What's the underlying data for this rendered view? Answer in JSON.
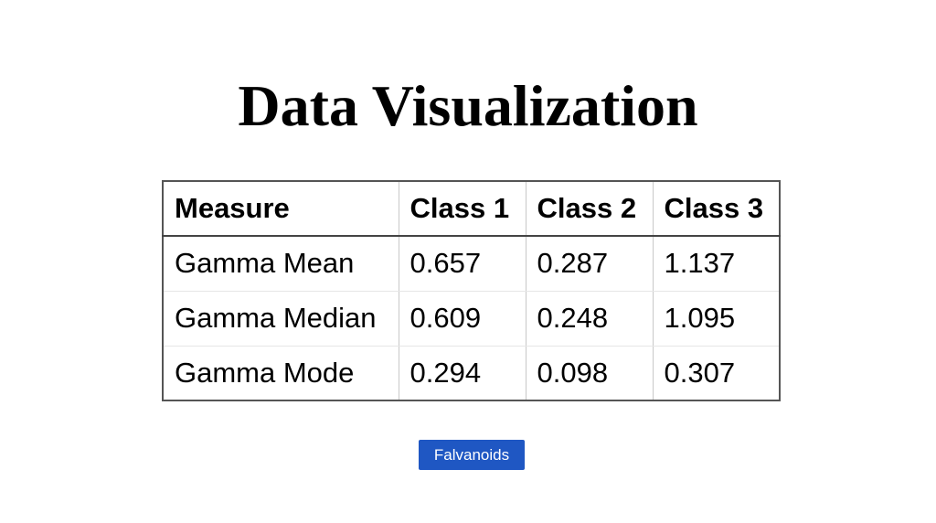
{
  "chart_data": {
    "type": "table",
    "title": "Data Visualization",
    "columns": [
      "Measure",
      "Class 1",
      "Class 2",
      "Class 3"
    ],
    "rows": [
      [
        "Gamma Mean",
        "0.657",
        "0.287",
        "1.137"
      ],
      [
        "Gamma Median",
        "0.609",
        "0.248",
        "1.095"
      ],
      [
        "Gamma Mode",
        "0.294",
        "0.098",
        "0.307"
      ]
    ]
  },
  "button": {
    "label": "Falvanoids",
    "color": "#1f57c3"
  }
}
